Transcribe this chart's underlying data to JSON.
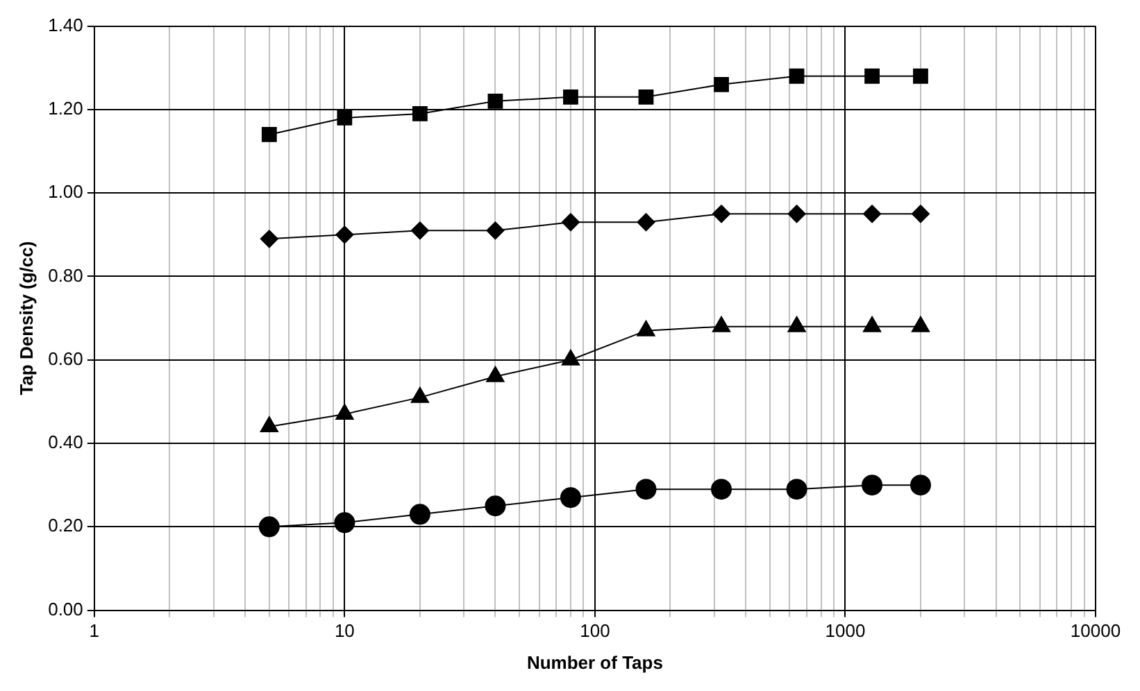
{
  "chart_data": {
    "type": "line",
    "xlabel": "Number of Taps",
    "ylabel": "Tap Density (g/cc)",
    "log": "x",
    "grid": true,
    "legend": false,
    "line_style": "solid",
    "x": [
      5,
      10,
      20,
      40,
      80,
      160,
      320,
      640,
      1280,
      2000
    ],
    "xlim": [
      1,
      10000
    ],
    "xticks": [
      1,
      {
        "value": 2,
        "label": null
      },
      {
        "value": 3,
        "label": null
      },
      {
        "value": 4,
        "label": null
      },
      {
        "value": 5,
        "label": null
      },
      {
        "value": 6,
        "label": null
      },
      {
        "value": 7,
        "label": null
      },
      {
        "value": 8,
        "label": null
      },
      {
        "value": 9,
        "label": null
      },
      10,
      {
        "value": 20,
        "label": null
      },
      {
        "value": 30,
        "label": null
      },
      {
        "value": 40,
        "label": null
      },
      {
        "value": 50,
        "label": null
      },
      {
        "value": 60,
        "label": null
      },
      {
        "value": 70,
        "label": null
      },
      {
        "value": 80,
        "label": null
      },
      {
        "value": 90,
        "label": null
      },
      100,
      {
        "value": 200,
        "label": null
      },
      {
        "value": 300,
        "label": null
      },
      {
        "value": 400,
        "label": null
      },
      {
        "value": 500,
        "label": null
      },
      {
        "value": 600,
        "label": null
      },
      {
        "value": 700,
        "label": null
      },
      {
        "value": 800,
        "label": null
      },
      {
        "value": 900,
        "label": null
      },
      1000,
      {
        "value": 2000,
        "label": null
      },
      {
        "value": 3000,
        "label": null
      },
      {
        "value": 4000,
        "label": null
      },
      {
        "value": 5000,
        "label": null
      },
      {
        "value": 6000,
        "label": null
      },
      {
        "value": 7000,
        "label": null
      },
      {
        "value": 8000,
        "label": null
      },
      {
        "value": 9000,
        "label": null
      },
      10000
    ],
    "ylim": [
      0,
      1.4
    ],
    "yticks": [
      {
        "value": 0,
        "label": "0.00"
      },
      {
        "value": 0.2,
        "label": "0.20"
      },
      {
        "value": 0.4,
        "label": "0.40"
      },
      {
        "value": 0.6,
        "label": "0.60"
      },
      {
        "value": 0.8,
        "label": "0.80"
      },
      {
        "value": 1,
        "label": "1.00"
      },
      {
        "value": 1.2,
        "label": "1.20"
      },
      {
        "value": 1.4,
        "label": "1.40"
      }
    ],
    "series": [
      {
        "color": "#000000",
        "marker": "square",
        "values": [
          1.14,
          1.18,
          1.19,
          1.22,
          1.23,
          1.23,
          1.26,
          1.28,
          1.28,
          1.28
        ]
      },
      {
        "color": "#000000",
        "marker": "diamond",
        "values": [
          0.89,
          0.9,
          0.91,
          0.91,
          0.93,
          0.93,
          0.95,
          0.95,
          0.95,
          0.95
        ]
      },
      {
        "color": "#000000",
        "marker": "triangle",
        "values": [
          0.44,
          0.47,
          0.51,
          0.56,
          0.6,
          0.67,
          0.68,
          0.68,
          0.68,
          0.68
        ]
      },
      {
        "color": "#000000",
        "marker": "circle",
        "values": [
          0.2,
          0.21,
          0.23,
          0.25,
          0.27,
          0.29,
          0.29,
          0.29,
          0.3,
          0.3
        ]
      }
    ]
  }
}
